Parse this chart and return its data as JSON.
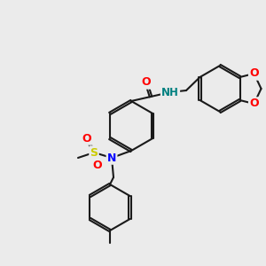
{
  "background": "#ebebeb",
  "bond_color": "#1a1a1a",
  "bond_lw": 1.5,
  "font_size": 9,
  "atom_colors": {
    "O": "#ff0000",
    "N": "#0000ff",
    "S": "#cccc00",
    "NH": "#008080",
    "C": "#1a1a1a"
  }
}
